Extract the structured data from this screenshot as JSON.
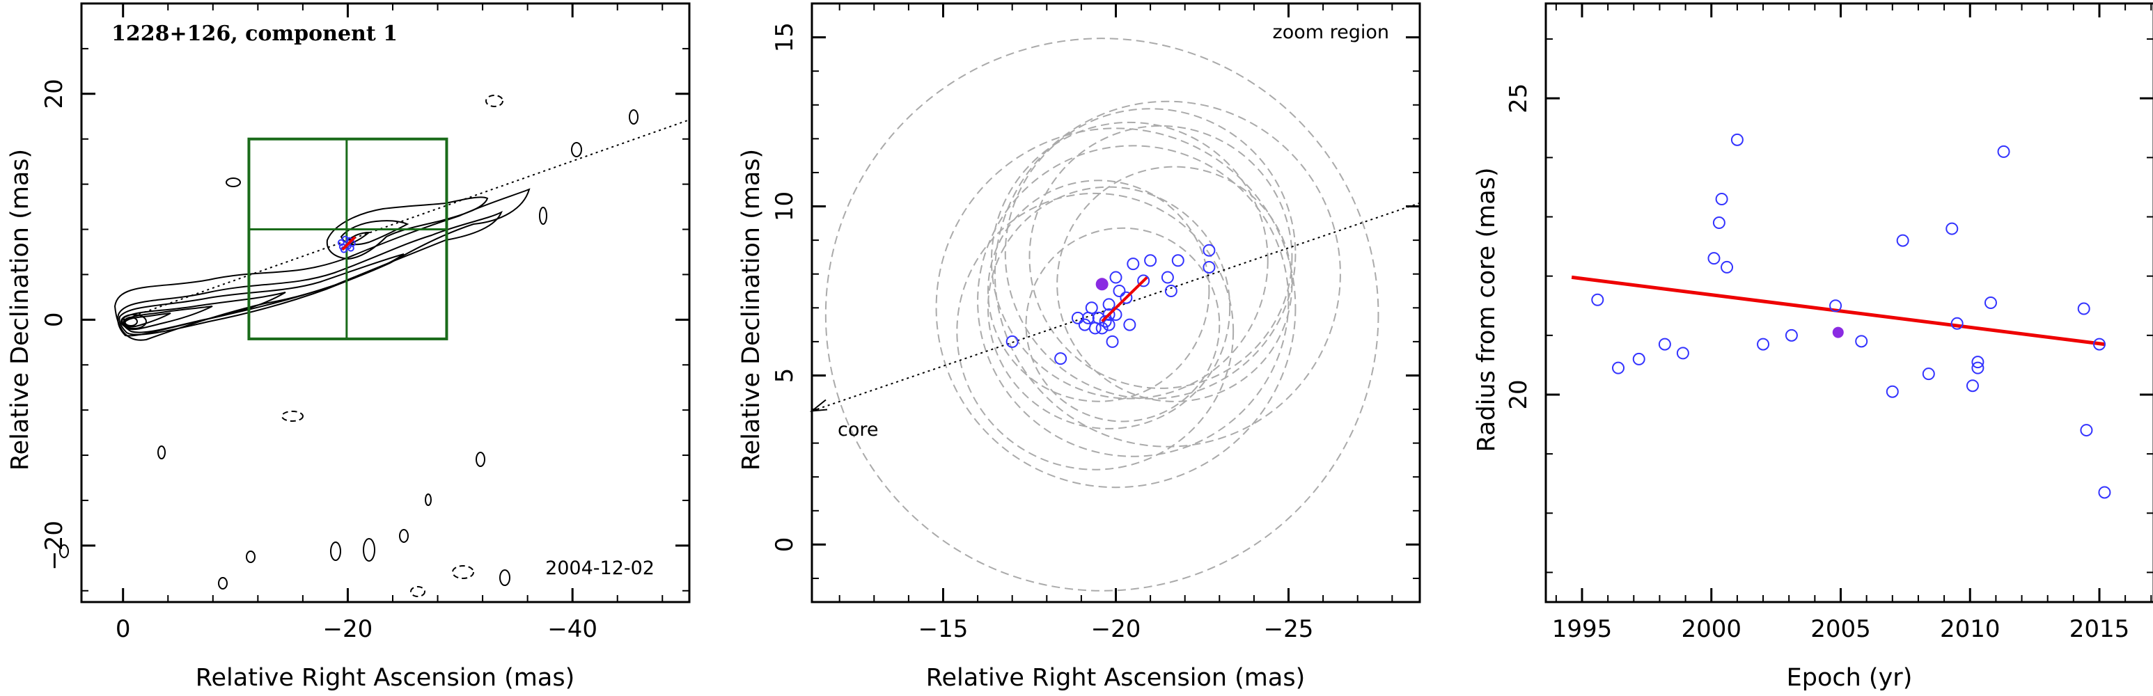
{
  "colors": {
    "contour": "#000000",
    "jet_axis": "#000000",
    "zoom_box": "#1a6b1a",
    "epoch_marker": "#3333ff",
    "highlight_marker": "#8a2be2",
    "fit_line": "#ee0000",
    "error_circle": "#aaaaaa"
  },
  "chart_data": [
    {
      "type": "contour",
      "title": "1228+126, component 1",
      "date_label": "2004-12-02",
      "xlabel": "Relative Right Ascension (mas)",
      "ylabel": "Relative Declination (mas)",
      "xlim": [
        3.7,
        -50.4
      ],
      "ylim": [
        -25,
        28
      ],
      "xticks": [
        0,
        -20,
        -40
      ],
      "yticks": [
        -20,
        0,
        20
      ],
      "zoom_box": {
        "x": [
          -11.2,
          -28.8
        ],
        "y": [
          -1.7,
          16.0
        ]
      },
      "jet_axis": {
        "from": [
          0,
          0
        ],
        "to": [
          -50.4,
          17.7
        ]
      },
      "component": {
        "x": -19.9,
        "y": 6.7
      }
    },
    {
      "type": "scatter",
      "title": "zoom region",
      "core_label": "core",
      "xlabel": "Relative Right Ascension (mas)",
      "ylabel": "Relative Declination (mas)",
      "xlim": [
        -11.2,
        -28.8
      ],
      "ylim": [
        -1.7,
        16.0
      ],
      "xticks": [
        -15,
        -20,
        -25
      ],
      "yticks": [
        0,
        5,
        10,
        15
      ],
      "jet_axis": {
        "from": [
          -11.2,
          3.95
        ],
        "to": [
          -28.8,
          10.1
        ]
      },
      "highlight": {
        "x": -19.6,
        "y": 7.7
      },
      "motion_vector": {
        "from": [
          -19.6,
          6.6
        ],
        "to": [
          -20.9,
          7.9
        ]
      },
      "points": [
        {
          "x": -17.0,
          "y": 6.0
        },
        {
          "x": -18.4,
          "y": 5.5
        },
        {
          "x": -18.9,
          "y": 6.7
        },
        {
          "x": -19.1,
          "y": 6.5
        },
        {
          "x": -19.2,
          "y": 6.7
        },
        {
          "x": -19.3,
          "y": 7.0
        },
        {
          "x": -19.4,
          "y": 6.4
        },
        {
          "x": -19.5,
          "y": 6.7
        },
        {
          "x": -19.6,
          "y": 6.4
        },
        {
          "x": -19.7,
          "y": 6.6
        },
        {
          "x": -19.8,
          "y": 6.8
        },
        {
          "x": -19.9,
          "y": 6.0
        },
        {
          "x": -19.8,
          "y": 7.1
        },
        {
          "x": -19.8,
          "y": 6.5
        },
        {
          "x": -20.0,
          "y": 6.8
        },
        {
          "x": -20.1,
          "y": 7.5
        },
        {
          "x": -20.0,
          "y": 7.9
        },
        {
          "x": -20.3,
          "y": 7.3
        },
        {
          "x": -20.4,
          "y": 6.5
        },
        {
          "x": -20.5,
          "y": 8.3
        },
        {
          "x": -20.8,
          "y": 7.8
        },
        {
          "x": -21.0,
          "y": 8.4
        },
        {
          "x": -21.5,
          "y": 7.9
        },
        {
          "x": -21.6,
          "y": 7.5
        },
        {
          "x": -21.8,
          "y": 8.4
        },
        {
          "x": -22.7,
          "y": 8.2
        },
        {
          "x": -22.7,
          "y": 8.7
        }
      ],
      "error_circles": [
        {
          "x": -19.6,
          "y": 6.8,
          "r": 8.0
        },
        {
          "x": -20.4,
          "y": 8.4,
          "r": 4.0
        },
        {
          "x": -21.0,
          "y": 8.6,
          "r": 4.2
        },
        {
          "x": -21.3,
          "y": 8.5,
          "r": 3.8
        },
        {
          "x": -19.8,
          "y": 7.0,
          "r": 3.5
        },
        {
          "x": -20.5,
          "y": 7.2,
          "r": 4.5
        },
        {
          "x": -21.5,
          "y": 8.0,
          "r": 5.0
        },
        {
          "x": -19.5,
          "y": 7.5,
          "r": 3.2
        },
        {
          "x": -20.2,
          "y": 6.5,
          "r": 2.8
        },
        {
          "x": -21.7,
          "y": 7.7,
          "r": 3.4
        },
        {
          "x": -20.0,
          "y": 7.0,
          "r": 5.2
        },
        {
          "x": -19.4,
          "y": 6.3,
          "r": 4.0
        }
      ]
    },
    {
      "type": "scatter",
      "xlabel": "Epoch (yr)",
      "ylabel": "Radius from core (mas)",
      "xlim": [
        1993.6,
        2017.1
      ],
      "ylim": [
        16.5,
        26.6
      ],
      "xticks": [
        1995,
        2000,
        2005,
        2010,
        2015
      ],
      "yticks": [
        20,
        25
      ],
      "highlight": {
        "x": 2004.9,
        "y": 21.05
      },
      "fit": {
        "x": [
          1994.6,
          2015.2
        ],
        "y": [
          21.98,
          20.85
        ]
      },
      "points": [
        {
          "x": 1995.6,
          "y": 21.6
        },
        {
          "x": 1996.4,
          "y": 20.45
        },
        {
          "x": 1997.2,
          "y": 20.6
        },
        {
          "x": 1998.2,
          "y": 20.85
        },
        {
          "x": 1998.9,
          "y": 20.7
        },
        {
          "x": 2000.1,
          "y": 22.3
        },
        {
          "x": 2000.3,
          "y": 22.9
        },
        {
          "x": 2000.4,
          "y": 23.3
        },
        {
          "x": 2000.6,
          "y": 22.15
        },
        {
          "x": 2001.0,
          "y": 24.3
        },
        {
          "x": 2002.0,
          "y": 20.85
        },
        {
          "x": 2003.1,
          "y": 21.0
        },
        {
          "x": 2004.8,
          "y": 21.5
        },
        {
          "x": 2005.8,
          "y": 20.9
        },
        {
          "x": 2007.0,
          "y": 20.05
        },
        {
          "x": 2007.4,
          "y": 22.6
        },
        {
          "x": 2008.4,
          "y": 20.35
        },
        {
          "x": 2009.3,
          "y": 22.8
        },
        {
          "x": 2009.5,
          "y": 21.2
        },
        {
          "x": 2010.1,
          "y": 20.15
        },
        {
          "x": 2010.3,
          "y": 20.45
        },
        {
          "x": 2010.3,
          "y": 20.55
        },
        {
          "x": 2010.8,
          "y": 21.55
        },
        {
          "x": 2011.3,
          "y": 24.1
        },
        {
          "x": 2014.4,
          "y": 21.45
        },
        {
          "x": 2014.5,
          "y": 19.4
        },
        {
          "x": 2015.0,
          "y": 20.85
        },
        {
          "x": 2015.2,
          "y": 18.35
        }
      ]
    }
  ]
}
